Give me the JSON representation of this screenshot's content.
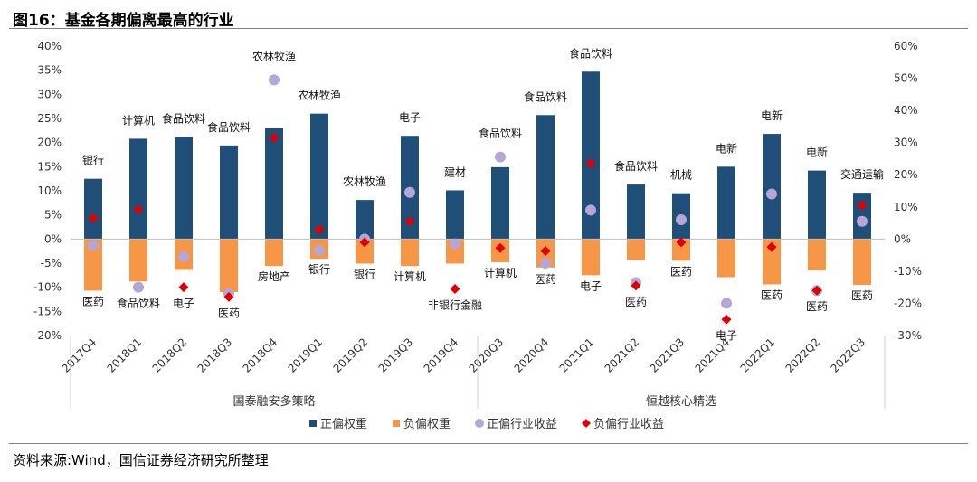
{
  "figure": {
    "title": "图16：基金各期偏离最高的行业",
    "source": "资料来源:Wind，国信证券经济研究所整理"
  },
  "chart_data": {
    "type": "bar",
    "categories": [
      "2017Q4",
      "2018Q1",
      "2018Q2",
      "2018Q3",
      "2018Q4",
      "2019Q1",
      "2019Q2",
      "2019Q3",
      "2019Q4",
      "2020Q3",
      "2020Q4",
      "2021Q1",
      "2021Q2",
      "2021Q3",
      "2021Q4",
      "2022Q1",
      "2022Q2",
      "2022Q3"
    ],
    "groups": [
      {
        "name": "国泰融安多策略",
        "categories": 9
      },
      {
        "name": "恒越核心精选",
        "categories": 9
      }
    ],
    "y_left": {
      "ticks": [
        "-20%",
        "-15%",
        "-10%",
        "-5%",
        "0%",
        "5%",
        "10%",
        "15%",
        "20%",
        "25%",
        "30%",
        "35%",
        "40%"
      ],
      "ylim": [
        -20,
        40
      ]
    },
    "y_right": {
      "ticks": [
        "-30%",
        "-20%",
        "-10%",
        "0%",
        "10%",
        "20%",
        "30%",
        "40%",
        "50%",
        "60%"
      ],
      "ylim": [
        -30,
        60
      ]
    },
    "series": [
      {
        "name": "正偏权重",
        "axis": "left",
        "kind": "bar",
        "color": "#1f4e79",
        "values": [
          12.5,
          20.8,
          21.2,
          19.4,
          23.0,
          26.0,
          8.1,
          21.4,
          10.1,
          14.9,
          25.7,
          34.7,
          11.3,
          9.5,
          15.0,
          21.8,
          14.2,
          9.6
        ]
      },
      {
        "name": "负偏权重",
        "axis": "left",
        "kind": "bar",
        "color": "#f79646",
        "values": [
          -10.7,
          -8.8,
          -6.4,
          -11.0,
          -5.6,
          -4.1,
          -5.1,
          -5.6,
          -5.1,
          -4.8,
          -5.9,
          -7.5,
          -4.4,
          -4.5,
          -7.9,
          -9.4,
          -6.5,
          -9.5
        ]
      },
      {
        "name": "正偏行业收益",
        "axis": "right",
        "kind": "marker",
        "color": "#b4a7d6",
        "values": [
          -2,
          -15,
          -5.5,
          -17,
          49.5,
          -3.5,
          0,
          14.5,
          -1.5,
          25.5,
          -7.5,
          9,
          -13.5,
          6,
          -20,
          14,
          -16,
          5.5
        ]
      },
      {
        "name": "负偏行业收益",
        "axis": "right",
        "kind": "marker",
        "color": "#e00000",
        "values": [
          6.5,
          9.2,
          -15,
          -18,
          31.5,
          3,
          -1,
          5.5,
          -15.5,
          -2.8,
          -3.7,
          23.5,
          -14.5,
          -1,
          -25,
          -2.5,
          -16,
          10.5
        ]
      }
    ],
    "pos_labels": [
      "银行",
      "计算机",
      "食品饮料",
      "食品饮料",
      "农林牧渔",
      "农林牧渔",
      "农林牧渔",
      "电子",
      "建材",
      "食品饮料",
      "食品饮料",
      "食品饮料",
      "食品饮料",
      "机械",
      "电新",
      "电新",
      "电新",
      "交通运输"
    ],
    "neg_labels": [
      "医药",
      "食品饮料",
      "电子",
      "医药",
      "房地产",
      "银行",
      "银行",
      "计算机",
      "非银行金融",
      "计算机",
      "医药",
      "电子",
      "医药",
      "医药",
      "电子",
      "医药",
      "医药",
      "医药"
    ],
    "legend": {
      "position": "bottom"
    }
  }
}
